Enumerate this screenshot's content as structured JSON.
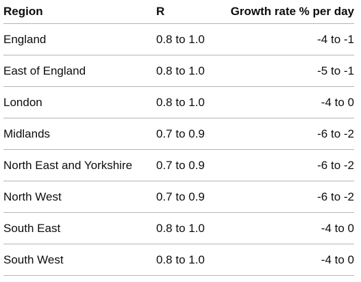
{
  "table": {
    "headers": [
      "Region",
      "R",
      "Growth rate % per day"
    ],
    "rows": [
      [
        "England",
        "0.8 to 1.0",
        "-4 to -1"
      ],
      [
        "East of England",
        "0.8 to 1.0",
        "-5 to -1"
      ],
      [
        "London",
        "0.8 to 1.0",
        "-4 to 0"
      ],
      [
        "Midlands",
        "0.7 to 0.9",
        "-6 to -2"
      ],
      [
        "North East and Yorkshire",
        "0.7 to 0.9",
        "-6 to -2"
      ],
      [
        "North West",
        "0.7 to 0.9",
        "-6 to -2"
      ],
      [
        "South East",
        "0.8 to 1.0",
        "-4 to 0"
      ],
      [
        "South West",
        "0.8 to 1.0",
        "-4 to 0"
      ]
    ]
  }
}
